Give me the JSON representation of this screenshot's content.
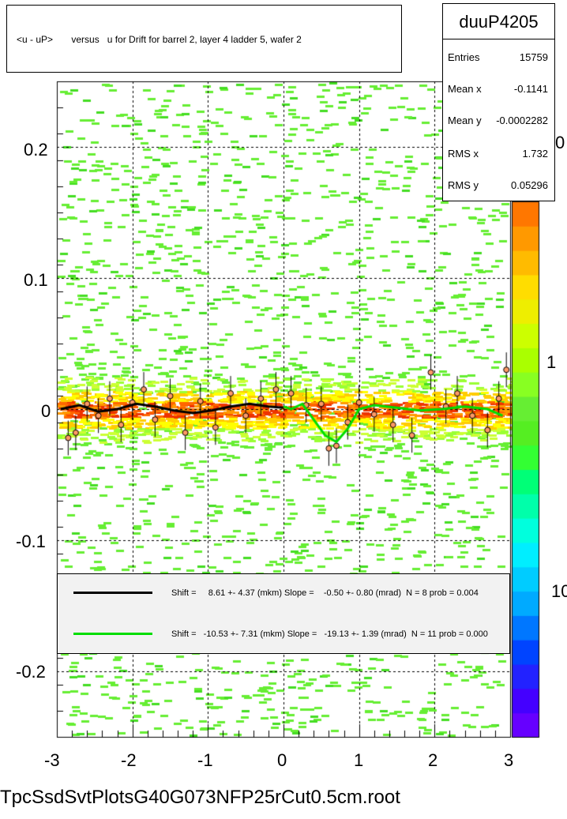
{
  "title": "<u - uP>       versus   u for Drift for barrel 2, layer 4 ladder 5, wafer 2",
  "footer": "TpcSsdSvtPlotsG40G073NFP25rCut0.5cm.root",
  "stats": {
    "name": "duuP4205",
    "rows": [
      {
        "label": "Entries",
        "value": "15759"
      },
      {
        "label": "Mean x",
        "value": "-0.1141"
      },
      {
        "label": "Mean y",
        "value": "-0.0002282"
      },
      {
        "label": "RMS x",
        "value": "1.732"
      },
      {
        "label": "RMS y",
        "value": "0.05296"
      }
    ]
  },
  "legend": [
    {
      "text": "Shift =     8.61 +- 4.37 (mkm) Slope =    -0.50 +- 0.80 (mrad)  N = 8 prob = 0.004",
      "color": "#000000"
    },
    {
      "text": "Shift =   -10.53 +- 7.31 (mkm) Slope =   -19.13 +- 1.39 (mrad)  N = 11 prob = 0.000",
      "color": "#00dd00"
    }
  ],
  "z_axis_labels": [
    "0",
    "1",
    "10"
  ],
  "chart_data": {
    "type": "heatmap",
    "xlim": [
      -3,
      3
    ],
    "ylim": [
      -0.25,
      0.25
    ],
    "x_ticks": [
      "-3",
      "-2",
      "-1",
      "0",
      "1",
      "2",
      "3"
    ],
    "y_ticks": [
      "-0.2",
      "-0.1",
      "0",
      "0.1",
      "0.2"
    ],
    "grid": true,
    "black_fit_curve": [
      [
        -2.95,
        0.0
      ],
      [
        -2.7,
        0.003
      ],
      [
        -2.45,
        -0.002
      ],
      [
        -2.2,
        0.0
      ],
      [
        -1.95,
        0.004
      ],
      [
        -1.7,
        0.002
      ],
      [
        -1.45,
        -0.001
      ],
      [
        -1.2,
        -0.003
      ],
      [
        -0.95,
        -0.001
      ],
      [
        -0.7,
        0.002
      ],
      [
        -0.45,
        0.004
      ],
      [
        -0.2,
        0.002
      ],
      [
        0.0,
        0.001
      ]
    ],
    "green_fit_curve": [
      [
        0.0,
        0.002
      ],
      [
        0.1,
        0.0
      ],
      [
        0.25,
        0.004
      ],
      [
        0.4,
        -0.008
      ],
      [
        0.55,
        -0.02
      ],
      [
        0.7,
        -0.025
      ],
      [
        0.85,
        -0.015
      ],
      [
        1.0,
        0.0
      ],
      [
        1.2,
        0.003
      ],
      [
        1.5,
        0.001
      ],
      [
        1.8,
        -0.001
      ],
      [
        2.1,
        0.0
      ],
      [
        2.4,
        0.002
      ],
      [
        2.7,
        0.0
      ],
      [
        2.9,
        -0.005
      ]
    ],
    "profile_points": [
      {
        "x": -2.85,
        "y": -0.022
      },
      {
        "x": -2.75,
        "y": -0.018
      },
      {
        "x": -2.6,
        "y": 0.004
      },
      {
        "x": -2.45,
        "y": -0.005
      },
      {
        "x": -2.3,
        "y": 0.008
      },
      {
        "x": -2.15,
        "y": -0.012
      },
      {
        "x": -2.0,
        "y": 0.005
      },
      {
        "x": -1.85,
        "y": 0.015
      },
      {
        "x": -1.7,
        "y": -0.008
      },
      {
        "x": -1.5,
        "y": 0.01
      },
      {
        "x": -1.3,
        "y": -0.018
      },
      {
        "x": -1.1,
        "y": 0.006
      },
      {
        "x": -0.9,
        "y": -0.014
      },
      {
        "x": -0.7,
        "y": 0.012
      },
      {
        "x": -0.5,
        "y": -0.005
      },
      {
        "x": -0.3,
        "y": 0.008
      },
      {
        "x": -0.1,
        "y": 0.015
      },
      {
        "x": 0.1,
        "y": 0.012
      },
      {
        "x": 0.3,
        "y": 0.003
      },
      {
        "x": 0.5,
        "y": 0.004
      },
      {
        "x": 0.6,
        "y": -0.03
      },
      {
        "x": 0.7,
        "y": -0.028
      },
      {
        "x": 0.85,
        "y": -0.01
      },
      {
        "x": 1.0,
        "y": 0.005
      },
      {
        "x": 1.2,
        "y": -0.004
      },
      {
        "x": 1.45,
        "y": -0.012
      },
      {
        "x": 1.7,
        "y": -0.02
      },
      {
        "x": 1.95,
        "y": 0.028
      },
      {
        "x": 2.15,
        "y": 0.002
      },
      {
        "x": 2.3,
        "y": 0.012
      },
      {
        "x": 2.5,
        "y": -0.005
      },
      {
        "x": 2.7,
        "y": -0.016
      },
      {
        "x": 2.85,
        "y": 0.008
      },
      {
        "x": 2.95,
        "y": 0.03
      }
    ]
  }
}
